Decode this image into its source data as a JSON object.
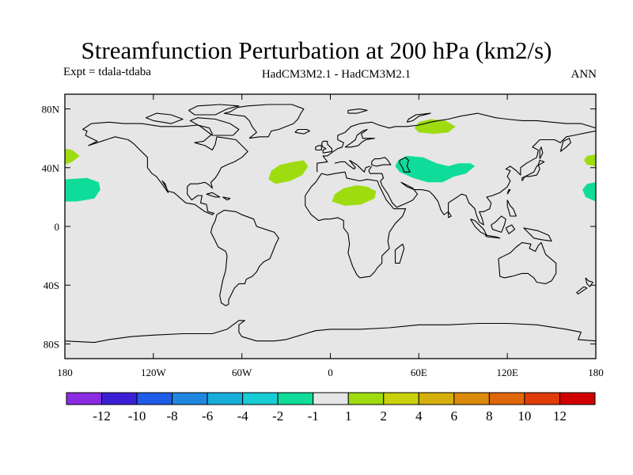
{
  "title": "Streamfunction Perturbation at 200 hPa (km2/s)",
  "left_label": "Expt = tdala-tdaba",
  "center_label": "HadCM3M2.1 - HadCM3M2.1",
  "right_label": "ANN",
  "map": {
    "projection": "cylindrical equidistant",
    "lon_range": [
      -180,
      180
    ],
    "lat_range": [
      -90,
      90
    ],
    "lat_ticks": [
      {
        "value": 80,
        "label": "80N"
      },
      {
        "value": 40,
        "label": "40N"
      },
      {
        "value": 0,
        "label": "0"
      },
      {
        "value": -40,
        "label": "40S"
      },
      {
        "value": -80,
        "label": "80S"
      }
    ],
    "lon_ticks": [
      {
        "value": -180,
        "label": "180"
      },
      {
        "value": -120,
        "label": "120W"
      },
      {
        "value": -60,
        "label": "60W"
      },
      {
        "value": 0,
        "label": "0"
      },
      {
        "value": 60,
        "label": "60E"
      },
      {
        "value": 120,
        "label": "120E"
      },
      {
        "value": 180,
        "label": "180"
      }
    ],
    "background_color": "#e6e6e6",
    "coastline_color": "#000000"
  },
  "colorbar": {
    "colors": [
      "#8a2be2",
      "#3b1fd6",
      "#1e5be6",
      "#1f87e0",
      "#17aedc",
      "#18cdd6",
      "#10dc9a",
      "#e6e6e6",
      "#9edc10",
      "#c8d10a",
      "#d6b00a",
      "#dc8a0a",
      "#e0660a",
      "#e03c0a",
      "#d00000"
    ],
    "labels": [
      "-12",
      "-10",
      "-8",
      "-6",
      "-4",
      "-2",
      "-1",
      "1",
      "2",
      "4",
      "6",
      "8",
      "10",
      "12"
    ]
  },
  "features": [
    {
      "name": "pos-anomaly-north-pacific-east",
      "color": "#9edc10",
      "points": [
        [
          -180,
          53
        ],
        [
          -175,
          52
        ],
        [
          -170,
          48
        ],
        [
          -175,
          44
        ],
        [
          -180,
          42
        ]
      ]
    },
    {
      "name": "pos-anomaly-north-pacific-west",
      "color": "#9edc10",
      "points": [
        [
          180,
          49
        ],
        [
          174,
          48
        ],
        [
          172,
          45
        ],
        [
          174,
          42
        ],
        [
          180,
          41
        ]
      ]
    },
    {
      "name": "neg-anomaly-east-pacific",
      "color": "#10dc9a",
      "points": [
        [
          -180,
          32
        ],
        [
          -165,
          33
        ],
        [
          -157,
          30
        ],
        [
          -156,
          25
        ],
        [
          -160,
          19
        ],
        [
          -172,
          17
        ],
        [
          -180,
          17
        ]
      ]
    },
    {
      "name": "neg-anomaly-west-pacific",
      "color": "#10dc9a",
      "points": [
        [
          180,
          30
        ],
        [
          174,
          29
        ],
        [
          171,
          25
        ],
        [
          173,
          20
        ],
        [
          180,
          17
        ]
      ]
    },
    {
      "name": "pos-anomaly-north-atlantic",
      "color": "#9edc10",
      "points": [
        [
          -42,
          32
        ],
        [
          -40,
          38
        ],
        [
          -34,
          42
        ],
        [
          -25,
          44
        ],
        [
          -18,
          45
        ],
        [
          -15,
          41
        ],
        [
          -19,
          35
        ],
        [
          -27,
          31
        ],
        [
          -37,
          29
        ]
      ]
    },
    {
      "name": "pos-anomaly-sahara",
      "color": "#9edc10",
      "points": [
        [
          1,
          17
        ],
        [
          3,
          22
        ],
        [
          9,
          26
        ],
        [
          18,
          28
        ],
        [
          25,
          27
        ],
        [
          31,
          24
        ],
        [
          30,
          19
        ],
        [
          21,
          15
        ],
        [
          10,
          14
        ]
      ]
    },
    {
      "name": "pos-anomaly-siberia",
      "color": "#9edc10",
      "points": [
        [
          57,
          67
        ],
        [
          60,
          71
        ],
        [
          68,
          73
        ],
        [
          78,
          72
        ],
        [
          85,
          68
        ],
        [
          80,
          64
        ],
        [
          70,
          63
        ],
        [
          60,
          64
        ]
      ]
    },
    {
      "name": "neg-anomaly-central-asia",
      "color": "#10dc9a",
      "points": [
        [
          46,
          45
        ],
        [
          52,
          48
        ],
        [
          63,
          47
        ],
        [
          72,
          43
        ],
        [
          80,
          41
        ],
        [
          87,
          43
        ],
        [
          95,
          43
        ],
        [
          98,
          41
        ],
        [
          92,
          36
        ],
        [
          84,
          34
        ],
        [
          76,
          30
        ],
        [
          66,
          30
        ],
        [
          56,
          33
        ],
        [
          47,
          37
        ],
        [
          44,
          41
        ]
      ]
    }
  ]
}
